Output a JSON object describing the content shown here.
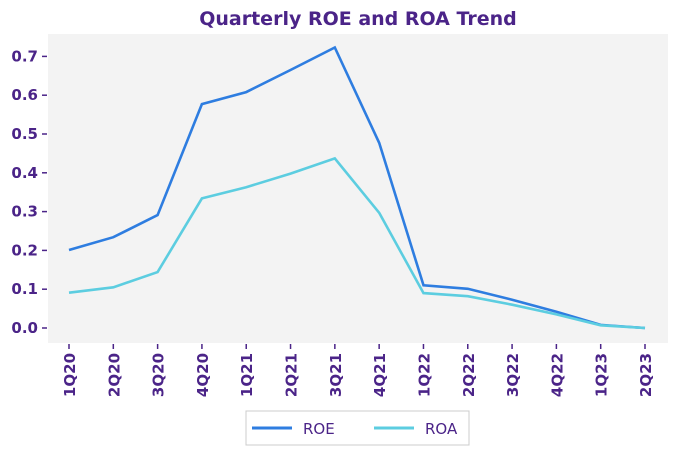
{
  "chart_data": {
    "type": "line",
    "title": "Quarterly ROE and ROA Trend",
    "xlabel": "",
    "ylabel": "",
    "categories": [
      "1Q20",
      "2Q20",
      "3Q20",
      "4Q20",
      "1Q21",
      "2Q21",
      "3Q21",
      "4Q21",
      "1Q22",
      "2Q22",
      "3Q22",
      "4Q22",
      "1Q23",
      "2Q23"
    ],
    "series": [
      {
        "name": "ROE",
        "color": "#2e7de0",
        "values": [
          0.201,
          0.234,
          0.291,
          0.577,
          0.608,
          0.665,
          0.723,
          0.477,
          0.11,
          0.101,
          0.073,
          0.042,
          0.008,
          0.0
        ]
      },
      {
        "name": "ROA",
        "color": "#5ccde0",
        "values": [
          0.091,
          0.105,
          0.144,
          0.334,
          0.363,
          0.398,
          0.437,
          0.297,
          0.09,
          0.082,
          0.06,
          0.035,
          0.007,
          0.0
        ]
      }
    ],
    "yticks": [
      "0.0",
      "0.1",
      "0.2",
      "0.3",
      "0.4",
      "0.5",
      "0.6",
      "0.7"
    ],
    "ylim": [
      -0.04,
      0.76
    ],
    "grid": false,
    "legend_position": "bottom-center",
    "plot_background": "#f3f3f3",
    "text_color": "#4b2488"
  }
}
